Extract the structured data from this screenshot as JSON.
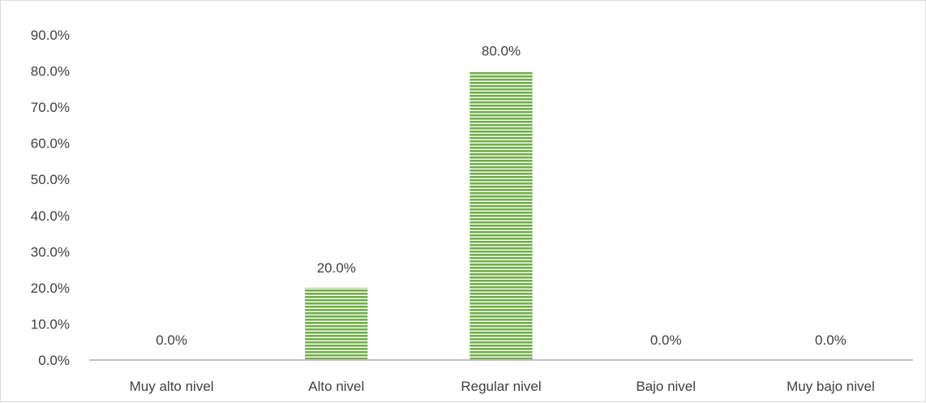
{
  "chart_data": {
    "type": "bar",
    "title": "",
    "xlabel": "",
    "ylabel": "",
    "categories": [
      "Muy alto nivel",
      "Alto nivel",
      "Regular nivel",
      "Bajo nivel",
      "Muy bajo nivel"
    ],
    "values": [
      0.0,
      20.0,
      80.0,
      0.0,
      0.0
    ],
    "data_labels": [
      "0.0%",
      "20.0%",
      "80.0%",
      "0.0%",
      "0.0%"
    ],
    "ylim": [
      0,
      90
    ],
    "yticks": [
      0,
      10,
      20,
      30,
      40,
      50,
      60,
      70,
      80,
      90
    ],
    "ytick_labels": [
      "0.0%",
      "10.0%",
      "20.0%",
      "30.0%",
      "40.0%",
      "50.0%",
      "60.0%",
      "70.0%",
      "80.0%",
      "90.0%"
    ],
    "grid": false,
    "legend": "none",
    "bar_color": "#70ad47",
    "bar_pattern": "horizontal-stripes"
  }
}
